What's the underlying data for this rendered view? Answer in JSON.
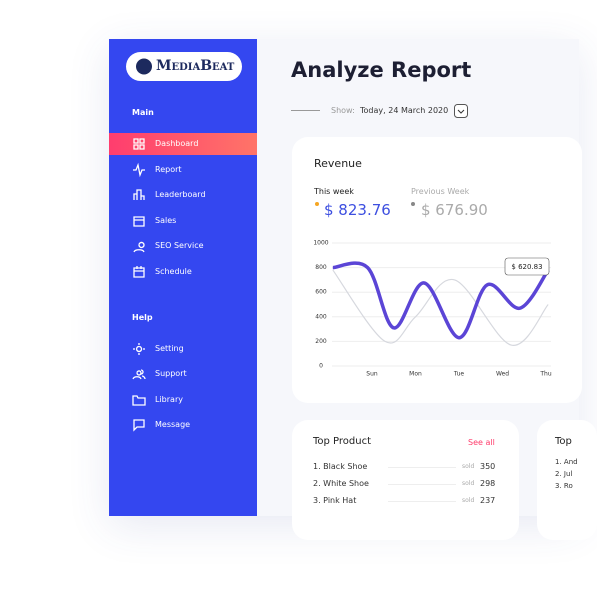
{
  "sidebar": {
    "logo": "MediaBeat",
    "sections": [
      {
        "title": "Main",
        "items": [
          "Dashboard",
          "Report",
          "Leaderboard",
          "Sales",
          "SEO Service",
          "Schedule"
        ]
      },
      {
        "title": "Help",
        "items": [
          "Setting",
          "Support",
          "Library",
          "Message"
        ]
      }
    ]
  },
  "header": {
    "title": "Analyze Report",
    "show_label": "Show:",
    "date": "Today, 24 March 2020"
  },
  "revenue": {
    "title": "Revenue",
    "this_week": {
      "label": "This week",
      "value": "$ 823.76"
    },
    "previous_week": {
      "label": "Previous Week",
      "value": "$ 676.90"
    },
    "chart": {
      "type": "line",
      "xlim": [
        -0.9,
        4.1
      ],
      "xticks": [
        {
          "value": 0,
          "label": "Sun"
        },
        {
          "value": 1,
          "label": "Mon"
        },
        {
          "value": 2,
          "label": "Tue"
        },
        {
          "value": 3,
          "label": "Wed"
        },
        {
          "value": 4,
          "label": "Thu"
        }
      ],
      "ylim": [
        0,
        1000
      ],
      "yticks": [
        0,
        200,
        400,
        600,
        800,
        1000
      ],
      "grid": true,
      "annotation": "$ 620.83",
      "series": [
        {
          "color": "#d6d8de",
          "x": [
            -0.9,
            0.3,
            1.0,
            1.9,
            3.2,
            4.05
          ],
          "values": [
            780,
            200,
            400,
            700,
            170,
            500
          ]
        },
        {
          "color": "#5b45d6",
          "x": [
            -0.9,
            -0.1,
            0.5,
            1.2,
            2.0,
            2.65,
            3.4,
            4.05
          ],
          "values": [
            800,
            800,
            310,
            675,
            230,
            660,
            470,
            780
          ]
        }
      ]
    }
  },
  "top_product": {
    "title": "Top Product",
    "link": "See all",
    "sold_label": "sold",
    "rows": [
      {
        "name": "1. Black Shoe",
        "sold": 350
      },
      {
        "name": "2. White Shoe",
        "sold": 298
      },
      {
        "name": "3. Pink Hat",
        "sold": 237
      }
    ]
  },
  "second_card": {
    "title": "Top",
    "rows": [
      "1. And",
      "2. Jul",
      "3. Ro"
    ]
  }
}
